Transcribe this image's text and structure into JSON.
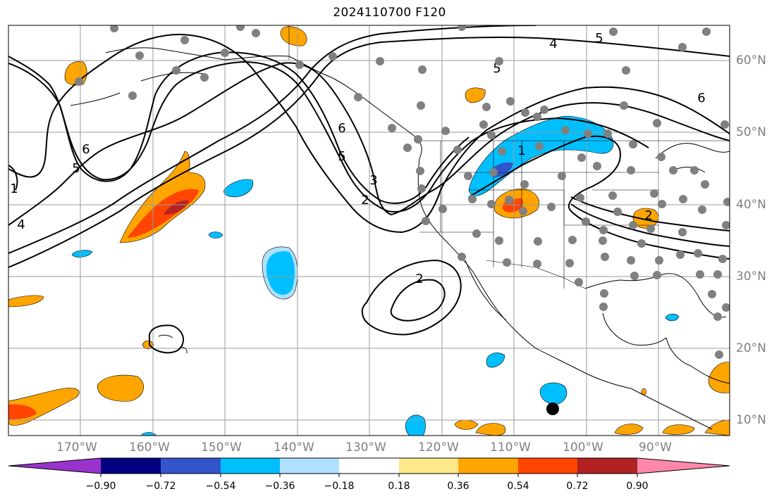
{
  "title": "2024110700 F120",
  "lat_labels": [
    "60°N",
    "50°N",
    "40°N",
    "30°N",
    "20°N",
    "10°N"
  ],
  "lon_labels": [
    "170°W",
    "160°W",
    "150°W",
    "140°W",
    "130°W",
    "120°W",
    "110°W",
    "100°W",
    "90°W"
  ],
  "contour_labels": [
    "4",
    "5",
    "6",
    "6",
    "5",
    "1",
    "2",
    "3",
    "2",
    "1",
    "6",
    "5",
    "4",
    "5",
    "2"
  ],
  "colorbar": {
    "ticks": [
      "−0.90",
      "−0.72",
      "−0.54",
      "−0.36",
      "−0.18",
      "0.18",
      "0.36",
      "0.54",
      "0.72",
      "0.90"
    ],
    "colors": [
      "#9933cc",
      "#000080",
      "#3355cc",
      "#00bfff",
      "#b0e0ff",
      "#ffffff",
      "#ffe88a",
      "#ffa500",
      "#ff4500",
      "#b22222",
      "#ff88aa"
    ]
  },
  "colors": {
    "grid": "#9a9a9a",
    "station_marker": "#808080",
    "point_marker": "#000000",
    "contour": "#000000"
  }
}
